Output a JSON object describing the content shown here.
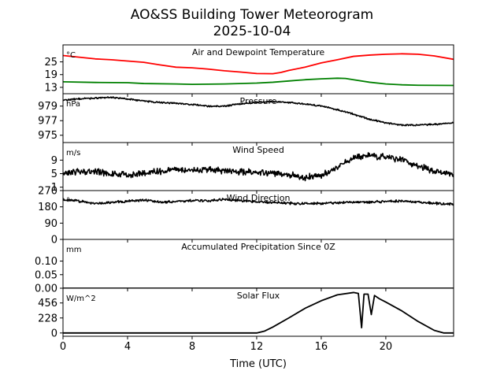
{
  "figure": {
    "title_line1": "AO&SS Building Tower Meteorogram",
    "title_line2": "2025-10-04",
    "xlabel": "Time (UTC)",
    "xlim": [
      0,
      24.2
    ],
    "xticks": [
      0,
      4,
      8,
      12,
      16,
      20
    ]
  },
  "colors": {
    "temperature": "#ff0000",
    "dewpoint": "#008000",
    "line": "#000000"
  },
  "chart_data": [
    {
      "type": "line",
      "title": "Air and Dewpoint Temperature",
      "ylabel": "°C",
      "ylim": [
        10,
        33
      ],
      "yticks": [
        13,
        19,
        25
      ],
      "series": [
        {
          "name": "Air Temperature",
          "color": "#ff0000",
          "points": [
            [
              0,
              28.0
            ],
            [
              1,
              27.2
            ],
            [
              2,
              26.4
            ],
            [
              3,
              26.0
            ],
            [
              4,
              25.4
            ],
            [
              5,
              24.8
            ],
            [
              6,
              23.6
            ],
            [
              7,
              22.5
            ],
            [
              8,
              22.2
            ],
            [
              9,
              21.6
            ],
            [
              10,
              20.8
            ],
            [
              11,
              20.2
            ],
            [
              12,
              19.5
            ],
            [
              13,
              19.4
            ],
            [
              13.5,
              20.0
            ],
            [
              14,
              21.0
            ],
            [
              15,
              22.5
            ],
            [
              16,
              24.5
            ],
            [
              17,
              26.0
            ],
            [
              18,
              27.6
            ],
            [
              19,
              28.2
            ],
            [
              20,
              28.6
            ],
            [
              21,
              28.8
            ],
            [
              22,
              28.6
            ],
            [
              23,
              27.8
            ],
            [
              24.2,
              26.2
            ]
          ]
        },
        {
          "name": "Dewpoint Temperature",
          "color": "#008000",
          "points": [
            [
              0,
              15.6
            ],
            [
              2,
              15.3
            ],
            [
              4,
              15.2
            ],
            [
              5,
              14.8
            ],
            [
              7,
              14.6
            ],
            [
              8,
              14.4
            ],
            [
              10,
              14.6
            ],
            [
              12,
              15.0
            ],
            [
              13,
              15.4
            ],
            [
              14,
              16.0
            ],
            [
              15,
              16.6
            ],
            [
              16,
              17.0
            ],
            [
              17,
              17.3
            ],
            [
              17.5,
              17.2
            ],
            [
              18,
              16.6
            ],
            [
              19,
              15.4
            ],
            [
              20,
              14.6
            ],
            [
              21,
              14.2
            ],
            [
              22,
              14.0
            ],
            [
              24.2,
              13.9
            ]
          ]
        }
      ]
    },
    {
      "type": "line",
      "title": "Pressure",
      "ylabel": "hPa",
      "ylim": [
        974.0,
        980.7
      ],
      "yticks": [
        975,
        977,
        979
      ],
      "series": [
        {
          "name": "Pressure",
          "color": "#000000",
          "noise": 0.08,
          "points": [
            [
              0,
              979.8
            ],
            [
              1,
              980.0
            ],
            [
              2,
              980.1
            ],
            [
              3,
              980.2
            ],
            [
              4,
              980.0
            ],
            [
              5,
              979.7
            ],
            [
              6,
              979.5
            ],
            [
              7,
              979.4
            ],
            [
              8,
              979.2
            ],
            [
              9,
              979.0
            ],
            [
              10,
              979.0
            ],
            [
              11,
              979.3
            ],
            [
              12,
              979.5
            ],
            [
              13,
              979.6
            ],
            [
              14,
              979.5
            ],
            [
              15,
              979.3
            ],
            [
              16,
              979.0
            ],
            [
              17,
              978.5
            ],
            [
              18,
              977.9
            ],
            [
              19,
              977.2
            ],
            [
              20,
              976.7
            ],
            [
              21,
              976.4
            ],
            [
              22,
              976.4
            ],
            [
              23,
              976.5
            ],
            [
              24.2,
              976.7
            ]
          ]
        }
      ]
    },
    {
      "type": "line",
      "title": "Wind Speed",
      "ylabel": "m/s",
      "ylim": [
        0.0,
        14.2
      ],
      "yticks": [
        1,
        5,
        9
      ],
      "series": [
        {
          "name": "Wind Speed",
          "color": "#000000",
          "noise": 0.7,
          "points": [
            [
              0,
              4.8
            ],
            [
              1,
              5.8
            ],
            [
              2,
              5.6
            ],
            [
              3,
              5.0
            ],
            [
              4,
              4.6
            ],
            [
              5,
              5.2
            ],
            [
              6,
              5.8
            ],
            [
              7,
              6.4
            ],
            [
              8,
              5.8
            ],
            [
              9,
              6.2
            ],
            [
              10,
              5.8
            ],
            [
              11,
              5.5
            ],
            [
              12,
              5.6
            ],
            [
              13,
              5.2
            ],
            [
              14,
              4.6
            ],
            [
              15,
              3.8
            ],
            [
              16,
              4.6
            ],
            [
              17,
              6.8
            ],
            [
              18,
              9.8
            ],
            [
              19,
              10.4
            ],
            [
              20,
              9.8
            ],
            [
              21,
              9.2
            ],
            [
              22,
              7.4
            ],
            [
              23,
              5.8
            ],
            [
              24.2,
              5.0
            ]
          ]
        }
      ]
    },
    {
      "type": "line",
      "title": "Wind Direction",
      "ylabel": "°",
      "ylim": [
        0,
        270
      ],
      "yticks": [
        0,
        90,
        180,
        270
      ],
      "series": [
        {
          "name": "Wind Direction",
          "color": "#000000",
          "noise": 5,
          "points": [
            [
              0,
              220
            ],
            [
              1,
              212
            ],
            [
              2,
              200
            ],
            [
              3,
              205
            ],
            [
              4,
              212
            ],
            [
              5,
              218
            ],
            [
              6,
              205
            ],
            [
              7,
              210
            ],
            [
              8,
              215
            ],
            [
              9,
              212
            ],
            [
              10,
              222
            ],
            [
              11,
              214
            ],
            [
              12,
              208
            ],
            [
              13,
              205
            ],
            [
              14,
              200
            ],
            [
              15,
              198
            ],
            [
              16,
              200
            ],
            [
              17,
              202
            ],
            [
              18,
              208
            ],
            [
              19,
              205
            ],
            [
              20,
              210
            ],
            [
              21,
              212
            ],
            [
              22,
              205
            ],
            [
              23,
              200
            ],
            [
              24.2,
              195
            ]
          ]
        }
      ]
    },
    {
      "type": "line",
      "title": "Accumulated Precipitation Since 0Z",
      "ylabel": "mm",
      "ylim": [
        0.0,
        0.18
      ],
      "yticks": [
        0.0,
        0.05,
        0.1
      ],
      "series": [
        {
          "name": "Accumulated Precipitation",
          "color": "#000000",
          "points": [
            [
              0,
              0.0
            ],
            [
              24.2,
              0.0
            ]
          ]
        }
      ]
    },
    {
      "type": "line",
      "title": "Solar Flux",
      "ylabel": "W/m^2",
      "ylim": [
        -50,
        680
      ],
      "yticks": [
        0,
        228,
        456
      ],
      "series": [
        {
          "name": "Solar Flux",
          "color": "#000000",
          "points": [
            [
              0,
              0
            ],
            [
              7,
              0
            ],
            [
              11,
              0
            ],
            [
              12.0,
              0
            ],
            [
              12.5,
              30
            ],
            [
              13,
              90
            ],
            [
              14,
              230
            ],
            [
              15,
              375
            ],
            [
              16,
              490
            ],
            [
              17,
              580
            ],
            [
              18,
              615
            ],
            [
              18.3,
              600
            ],
            [
              18.5,
              80
            ],
            [
              18.65,
              590
            ],
            [
              18.9,
              590
            ],
            [
              19.1,
              280
            ],
            [
              19.3,
              570
            ],
            [
              19.6,
              520
            ],
            [
              20,
              470
            ],
            [
              21,
              335
            ],
            [
              22,
              175
            ],
            [
              23,
              40
            ],
            [
              23.6,
              0
            ],
            [
              24.2,
              0
            ]
          ]
        }
      ]
    }
  ]
}
